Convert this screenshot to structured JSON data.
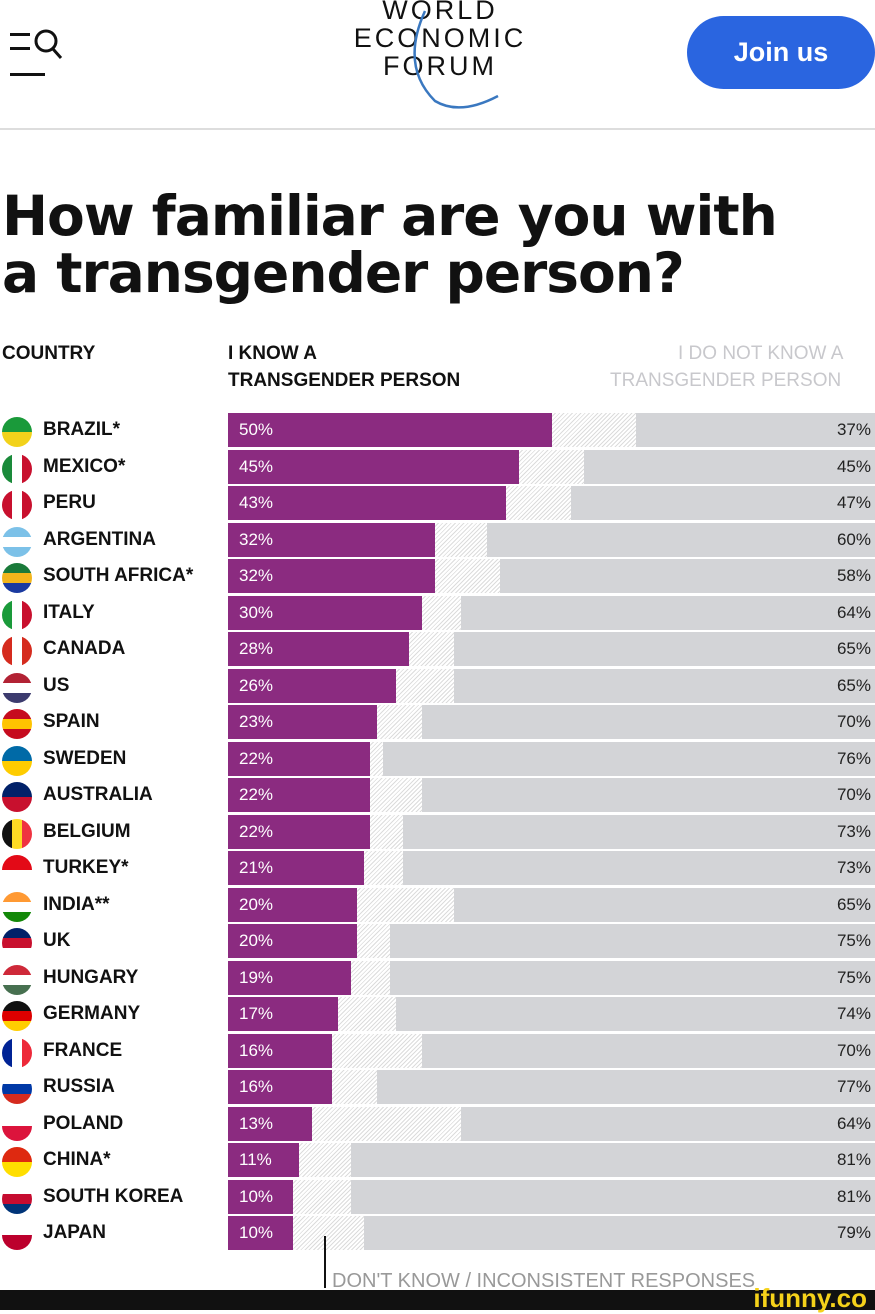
{
  "header": {
    "logo": [
      "WORLD",
      "ECONOMIC",
      "FORUM"
    ],
    "join_label": "Join us",
    "icons": [
      "menu-icon",
      "search-icon"
    ]
  },
  "title_lines": [
    "How familiar are you with",
    "a transgender person?"
  ],
  "columns": {
    "country": "COUNTRY",
    "know": [
      "I KNOW A",
      "TRANSGENDER PERSON"
    ],
    "dont_know": [
      "I DO NOT KNOW A",
      "TRANSGENDER PERSON"
    ]
  },
  "colors": {
    "know": "#8b2b80",
    "dont_know": "#d3d4d7",
    "accent": "#2a65e0"
  },
  "chart_data": {
    "type": "bar",
    "orientation": "horizontal",
    "stacked": true,
    "title": "How familiar are you with a transgender person?",
    "xlim": [
      0,
      100
    ],
    "categories": [
      "BRAZIL*",
      "MEXICO*",
      "PERU",
      "ARGENTINA",
      "SOUTH AFRICA*",
      "ITALY",
      "CANADA",
      "US",
      "SPAIN",
      "SWEDEN",
      "AUSTRALIA",
      "BELGIUM",
      "TURKEY*",
      "INDIA**",
      "UK",
      "HUNGARY",
      "GERMANY",
      "FRANCE",
      "RUSSIA",
      "POLAND",
      "CHINA*",
      "SOUTH KOREA",
      "JAPAN"
    ],
    "series": [
      {
        "name": "I KNOW A TRANSGENDER PERSON",
        "values": [
          50,
          45,
          43,
          32,
          32,
          30,
          28,
          26,
          23,
          22,
          22,
          22,
          21,
          20,
          20,
          19,
          17,
          16,
          16,
          13,
          11,
          10,
          10
        ]
      },
      {
        "name": "DON'T KNOW / INCONSISTENT RESPONSES",
        "values": [
          13,
          10,
          10,
          8,
          10,
          6,
          7,
          9,
          7,
          2,
          8,
          5,
          6,
          15,
          5,
          6,
          9,
          14,
          7,
          23,
          8,
          9,
          11
        ]
      },
      {
        "name": "I DO NOT KNOW A TRANSGENDER PERSON",
        "values": [
          37,
          45,
          47,
          60,
          58,
          64,
          65,
          65,
          70,
          76,
          70,
          73,
          73,
          65,
          75,
          75,
          74,
          70,
          77,
          64,
          81,
          81,
          79
        ]
      }
    ],
    "annotation": "DON'T KNOW / INCONSISTENT RESPONSES"
  },
  "flags": [
    [
      "#1a9a3a",
      "#f2d21b"
    ],
    [
      "#1a8a3a",
      "#fff",
      "#c8102e"
    ],
    [
      "#c8102e",
      "#fff",
      "#c8102e"
    ],
    [
      "#7cc1e8",
      "#fff",
      "#7cc1e8"
    ],
    [
      "#1a7a3a",
      "#f2b51b",
      "#1a3aa0"
    ],
    [
      "#1a9a3a",
      "#fff",
      "#c8102e"
    ],
    [
      "#d52b1e",
      "#fff",
      "#d52b1e"
    ],
    [
      "#b22234",
      "#fff",
      "#3c3b6e"
    ],
    [
      "#c60b1e",
      "#ffc400",
      "#c60b1e"
    ],
    [
      "#006aa7",
      "#fecc00"
    ],
    [
      "#012169",
      "#c8102e"
    ],
    [
      "#111",
      "#fdda24",
      "#ef3340"
    ],
    [
      "#e30a17",
      "#fff"
    ],
    [
      "#ff9933",
      "#fff",
      "#138808"
    ],
    [
      "#012169",
      "#c8102e",
      "#fff"
    ],
    [
      "#ce2939",
      "#fff",
      "#477050"
    ],
    [
      "#111",
      "#dd0000",
      "#ffce00"
    ],
    [
      "#002395",
      "#fff",
      "#ed2939"
    ],
    [
      "#fff",
      "#0039a6",
      "#d52b1e"
    ],
    [
      "#fff",
      "#dc143c"
    ],
    [
      "#de2910",
      "#ffde00"
    ],
    [
      "#fff",
      "#c60c30",
      "#003478"
    ],
    [
      "#fff",
      "#bc002d"
    ]
  ],
  "watermark": "ifunny.co"
}
